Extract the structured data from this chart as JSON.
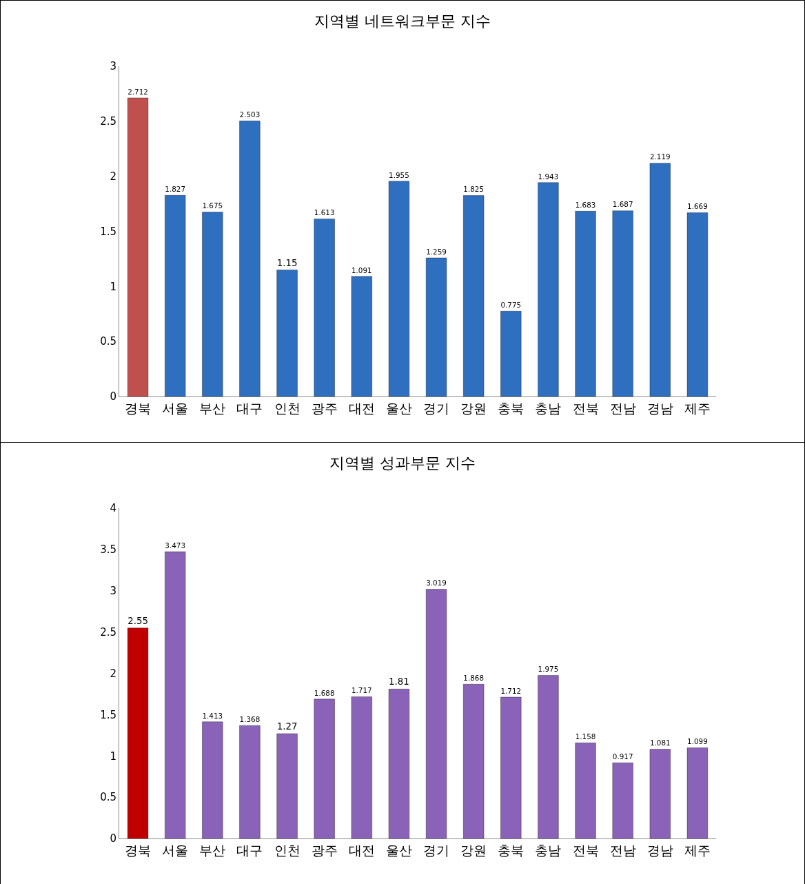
{
  "chart_data": [
    {
      "type": "bar",
      "title": "지역별 네트워크부문 지수",
      "categories": [
        "경북",
        "서울",
        "부산",
        "대구",
        "인천",
        "광주",
        "대전",
        "울산",
        "경기",
        "강원",
        "충북",
        "충남",
        "전북",
        "전남",
        "경남",
        "제주"
      ],
      "values": [
        2.712,
        1.827,
        1.675,
        2.503,
        1.15,
        1.613,
        1.091,
        1.955,
        1.259,
        1.825,
        0.775,
        1.943,
        1.683,
        1.687,
        2.119,
        1.669
      ],
      "colors": [
        "#c0504d",
        "#2f6fbf",
        "#2f6fbf",
        "#2f6fbf",
        "#2f6fbf",
        "#2f6fbf",
        "#2f6fbf",
        "#2f6fbf",
        "#2f6fbf",
        "#2f6fbf",
        "#2f6fbf",
        "#2f6fbf",
        "#2f6fbf",
        "#2f6fbf",
        "#2f6fbf",
        "#2f6fbf"
      ],
      "ylim": [
        0,
        3
      ],
      "yticks": [
        0,
        0.5,
        1,
        1.5,
        2,
        2.5,
        3
      ],
      "data_labels": true
    },
    {
      "type": "bar",
      "title": "지역별 성과부문 지수",
      "categories": [
        "경북",
        "서울",
        "부산",
        "대구",
        "인천",
        "광주",
        "대전",
        "울산",
        "경기",
        "강원",
        "충북",
        "충남",
        "전북",
        "전남",
        "경남",
        "제주"
      ],
      "values": [
        2.55,
        3.473,
        1.413,
        1.368,
        1.27,
        1.688,
        1.717,
        1.81,
        3.019,
        1.868,
        1.712,
        1.975,
        1.158,
        0.917,
        1.081,
        1.099
      ],
      "colors": [
        "#c00000",
        "#8a63b8",
        "#8a63b8",
        "#8a63b8",
        "#8a63b8",
        "#8a63b8",
        "#8a63b8",
        "#8a63b8",
        "#8a63b8",
        "#8a63b8",
        "#8a63b8",
        "#8a63b8",
        "#8a63b8",
        "#8a63b8",
        "#8a63b8",
        "#8a63b8"
      ],
      "ylim": [
        0,
        4
      ],
      "yticks": [
        0,
        0.5,
        1,
        1.5,
        2,
        2.5,
        3,
        3.5,
        4
      ],
      "data_labels": true
    }
  ]
}
